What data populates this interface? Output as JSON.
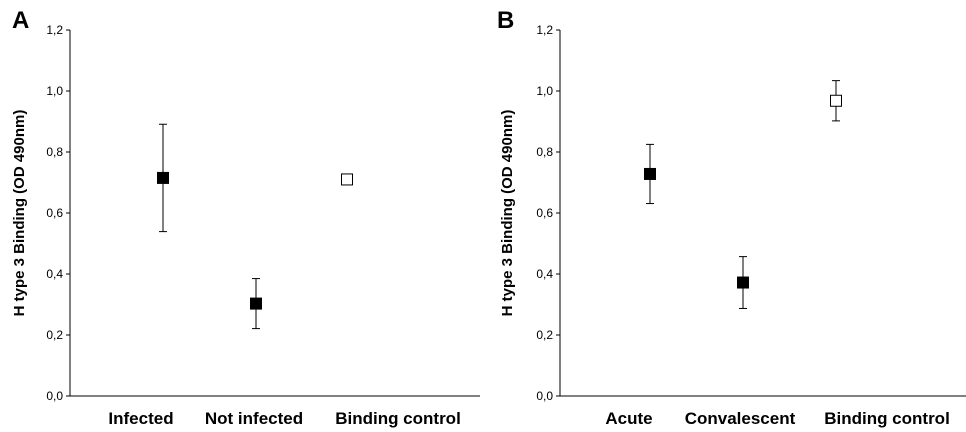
{
  "chart_data": [
    {
      "type": "scatter",
      "panel_label": "A",
      "ylabel": "H type 3 Binding (OD 490nm)",
      "ylim": [
        0,
        1.2
      ],
      "yticks": [
        "0,0",
        "0,2",
        "0,4",
        "0,6",
        "0,8",
        "1,0",
        "1,2"
      ],
      "categories": [
        "Infected",
        "Not infected",
        "Binding control"
      ],
      "values": [
        0.715,
        0.303,
        0.71
      ],
      "error": [
        0.176,
        0.082,
        0.0
      ],
      "marker_fill": [
        "#000000",
        "#000000",
        "#ffffff"
      ],
      "grid": false
    },
    {
      "type": "scatter",
      "panel_label": "B",
      "ylabel": "H type 3 Binding (OD 490nm)",
      "ylim": [
        0,
        1.2
      ],
      "yticks": [
        "0,0",
        "0,2",
        "0,4",
        "0,6",
        "0,8",
        "1,0",
        "1,2"
      ],
      "categories": [
        "Acute",
        "Convalescent",
        "Binding control"
      ],
      "values": [
        0.728,
        0.372,
        0.968
      ],
      "error": [
        0.097,
        0.085,
        0.066
      ],
      "marker_fill": [
        "#000000",
        "#000000",
        "#ffffff"
      ],
      "grid": false
    }
  ]
}
